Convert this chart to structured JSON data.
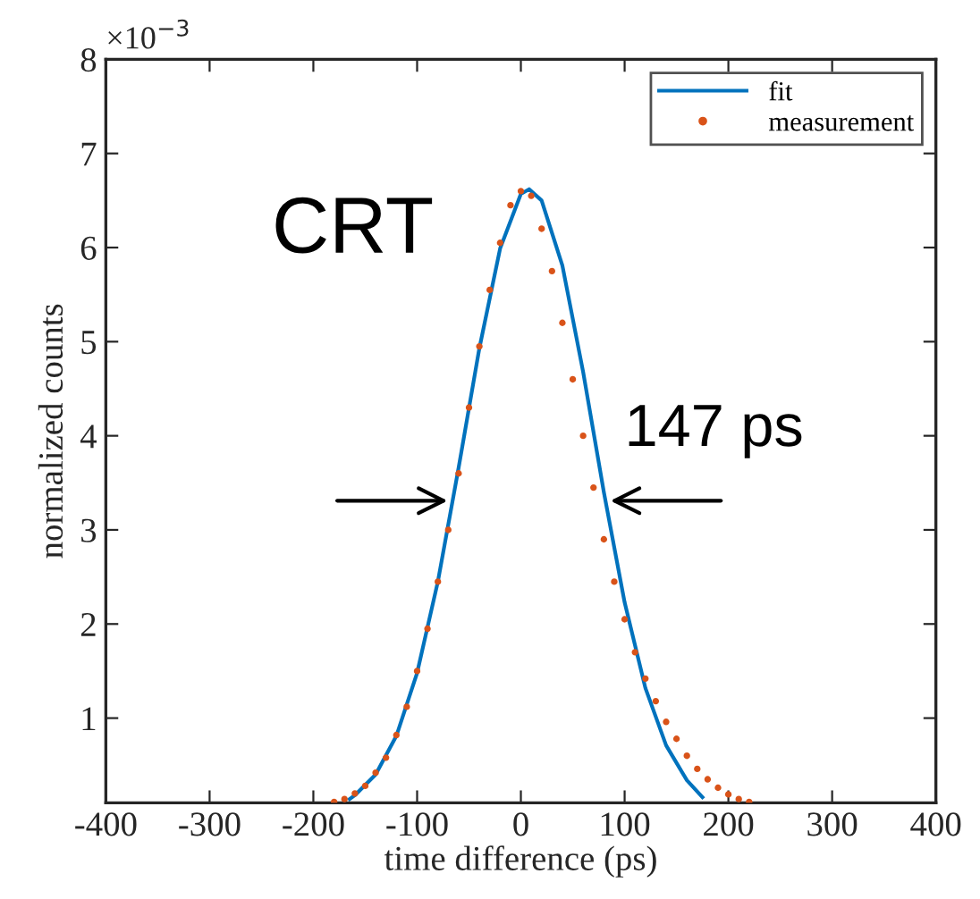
{
  "chart_data": {
    "type": "line",
    "xlabel": "time difference (ps)",
    "ylabel": "normalized counts",
    "xlim": [
      -400,
      400
    ],
    "xticks": [
      -400,
      -300,
      -200,
      -100,
      0,
      100,
      200,
      300,
      400
    ],
    "ylim": [
      0.1,
      8
    ],
    "yticks": [
      1,
      2,
      3,
      4,
      5,
      6,
      7,
      8
    ],
    "grid": false,
    "legend": "top right",
    "annotations": [
      "CRT",
      "147 ps",
      "×10$^{−3}$"
    ],
    "series": [
      {
        "name": "fit",
        "color": "#0072bd",
        "line_style": "solid",
        "x": [
          -165,
          -160,
          -140,
          -120,
          -100,
          -80,
          -60,
          -40,
          -20,
          0,
          8,
          20,
          40,
          60,
          80,
          100,
          120,
          140,
          160,
          175
        ],
        "values": [
          0.14,
          0.18,
          0.4,
          0.81,
          1.48,
          2.45,
          3.66,
          4.93,
          5.99,
          6.57,
          6.62,
          6.5,
          5.81,
          4.68,
          3.4,
          2.23,
          1.32,
          0.71,
          0.34,
          0.16
        ]
      },
      {
        "name": "measurement",
        "type": "scatter",
        "marker": "circle",
        "color": "#d95319",
        "x": [
          -180,
          -170,
          -160,
          -150,
          -140,
          -130,
          -120,
          -110,
          -100,
          -90,
          -80,
          -70,
          -60,
          -50,
          -40,
          -30,
          -20,
          -10,
          0,
          10,
          20,
          30,
          40,
          50,
          60,
          70,
          80,
          90,
          100,
          110,
          120,
          130,
          140,
          150,
          160,
          170,
          180,
          190,
          200,
          210,
          220
        ],
        "values": [
          0.11,
          0.14,
          0.2,
          0.28,
          0.42,
          0.58,
          0.82,
          1.12,
          1.5,
          1.95,
          2.45,
          3.0,
          3.6,
          4.3,
          4.95,
          5.55,
          6.05,
          6.45,
          6.6,
          6.55,
          6.2,
          5.75,
          5.2,
          4.6,
          4.0,
          3.45,
          2.9,
          2.45,
          2.05,
          1.7,
          1.42,
          1.18,
          0.96,
          0.78,
          0.6,
          0.46,
          0.35,
          0.26,
          0.19,
          0.14,
          0.11
        ]
      }
    ]
  }
}
